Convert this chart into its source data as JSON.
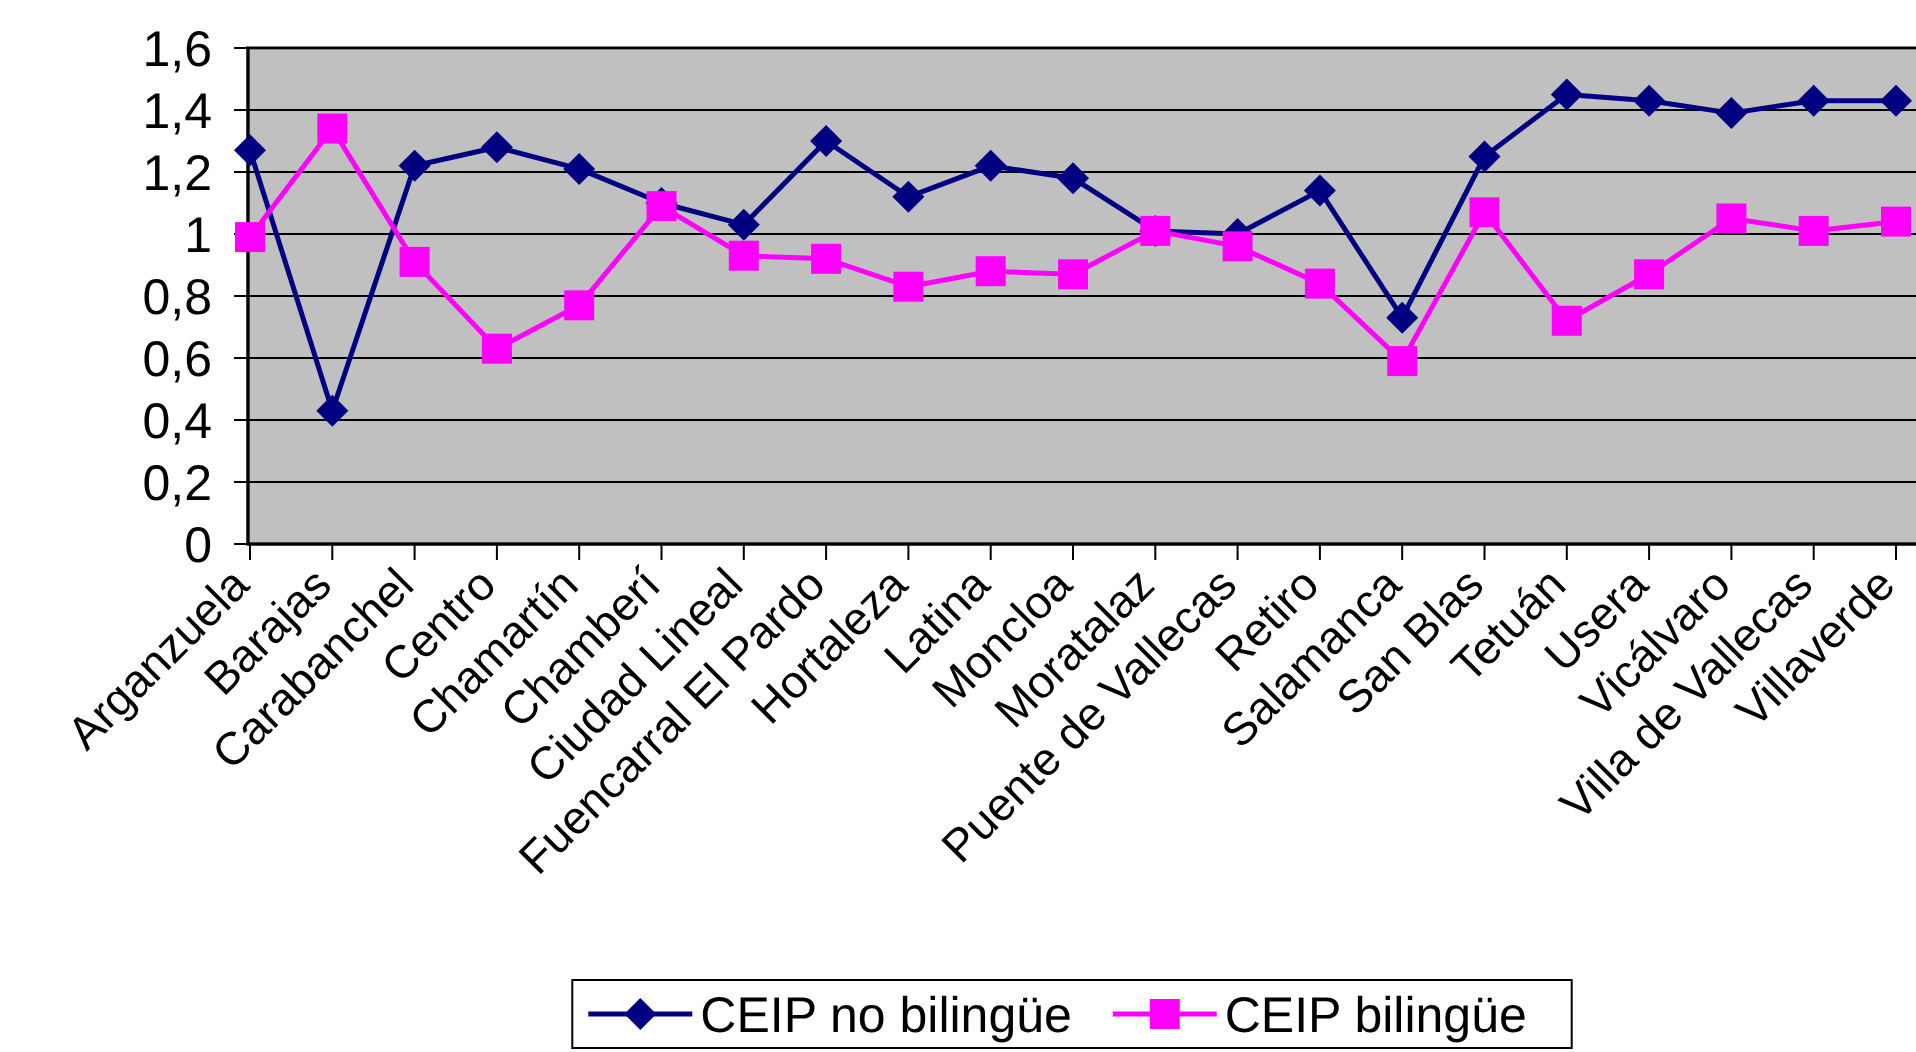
{
  "chart_data": {
    "type": "line",
    "categories": [
      "Arganzuela",
      "Barajas",
      "Carabanchel",
      "Centro",
      "Chamartín",
      "Chamberí",
      "Ciudad Lineal",
      "Fuencarral El Pardo",
      "Hortaleza",
      "Latina",
      "Moncloa",
      "Moratalaz",
      "Puente de Vallecas",
      "Retiro",
      "Salamanca",
      "San Blas",
      "Tetuán",
      "Usera",
      "Vicálvaro",
      "Villa de Vallecas",
      "Villaverde"
    ],
    "series": [
      {
        "name": "CEIP no bilingüe",
        "color": "#000080",
        "marker": "diamond",
        "values": [
          1.27,
          0.43,
          1.22,
          1.28,
          1.21,
          1.1,
          1.03,
          1.3,
          1.12,
          1.22,
          1.18,
          1.01,
          1.0,
          1.14,
          0.73,
          1.25,
          1.45,
          1.43,
          1.39,
          1.43,
          1.43
        ]
      },
      {
        "name": "CEIP bilingüe",
        "color": "#ff00ff",
        "marker": "square",
        "values": [
          0.99,
          1.34,
          0.91,
          0.63,
          0.77,
          1.09,
          0.93,
          0.92,
          0.83,
          0.88,
          0.87,
          1.01,
          0.96,
          0.84,
          0.59,
          1.07,
          0.72,
          0.87,
          1.05,
          1.01,
          1.04
        ]
      }
    ],
    "ylim": [
      0,
      1.6
    ],
    "yticks": [
      0,
      {
        "value": 0.2,
        "label": "0,2"
      },
      {
        "value": 0.4,
        "label": "0,4"
      },
      {
        "value": 0.6,
        "label": "0,6"
      },
      {
        "value": 0.8,
        "label": "0,8"
      },
      1,
      {
        "value": 1.2,
        "label": "1,2"
      },
      {
        "value": 1.4,
        "label": "1,4"
      },
      {
        "value": 1.6,
        "label": "1,6"
      }
    ],
    "grid": "y",
    "legend": "bottom",
    "line_style": "solid"
  }
}
